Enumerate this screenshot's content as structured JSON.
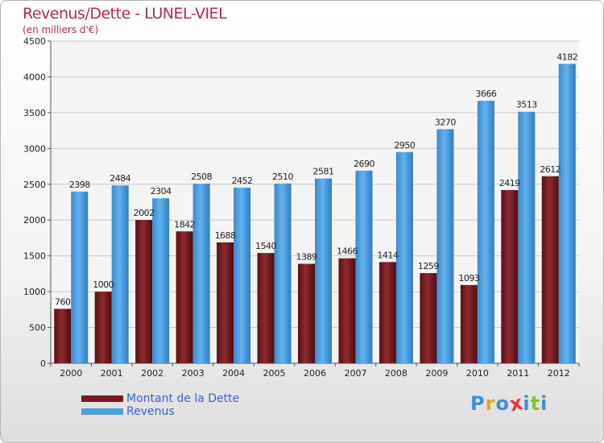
{
  "header": {
    "title": "Revenus/Dette - LUNEL-VIEL",
    "subtitle": "(en milliers d'€)"
  },
  "logo": {
    "letters": [
      {
        "ch": "P",
        "color": "#3c8fd6"
      },
      {
        "ch": "r",
        "color": "#f0a019"
      },
      {
        "ch": "o",
        "color": "#3c8fd6"
      },
      {
        "ch": "x",
        "color": "#e8352d"
      },
      {
        "ch": "i",
        "color": "#3c8fd6"
      },
      {
        "ch": "t",
        "color": "#8cbf2a"
      },
      {
        "ch": "i",
        "color": "#3c8fd6"
      }
    ]
  },
  "chart_data": {
    "type": "bar",
    "title": "Revenus/Dette - LUNEL-VIEL",
    "subtitle": "(en milliers d'€)",
    "categories": [
      "2000",
      "2001",
      "2002",
      "2003",
      "2004",
      "2005",
      "2006",
      "2007",
      "2008",
      "2009",
      "2010",
      "2011",
      "2012"
    ],
    "series": [
      {
        "name": "Montant de la Dette",
        "color": "#7a1a1f",
        "values": [
          760,
          1000,
          2002,
          1842,
          1688,
          1540,
          1389,
          1466,
          1414,
          1259,
          1093,
          2419,
          2612
        ]
      },
      {
        "name": "Revenus",
        "color": "#4d9fe0",
        "values": [
          2398,
          2484,
          2304,
          2508,
          2452,
          2510,
          2581,
          2690,
          2950,
          3270,
          3666,
          3513,
          4182
        ]
      }
    ],
    "ylim": [
      0,
      4500
    ],
    "yticks": [
      0,
      500,
      1000,
      1500,
      2000,
      2500,
      3000,
      3500,
      4000,
      4500
    ],
    "grid": true,
    "legend_position": "bottom-left",
    "xlabel": "",
    "ylabel": ""
  }
}
